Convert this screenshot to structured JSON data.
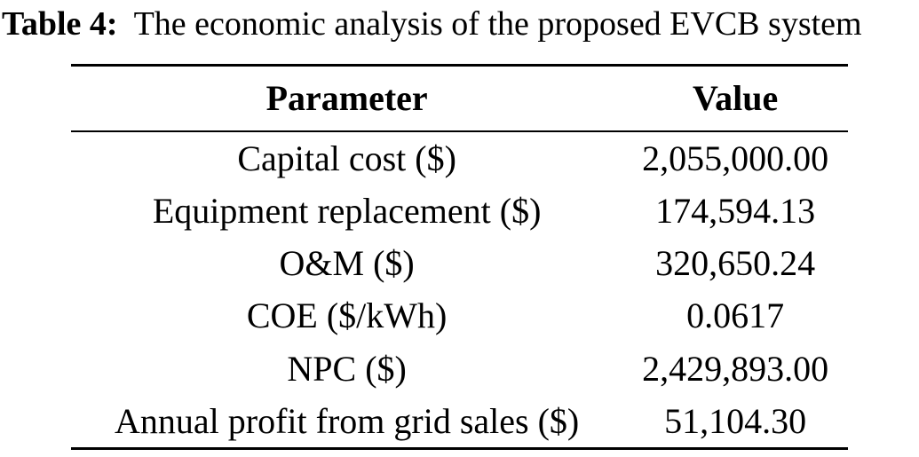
{
  "caption": {
    "label": "Table 4:",
    "text": "The economic analysis of the proposed EVCB system"
  },
  "table": {
    "columns": [
      "Parameter",
      "Value"
    ],
    "rows": [
      {
        "parameter": "Capital cost ($)",
        "value": "2,055,000.00"
      },
      {
        "parameter": "Equipment replacement ($)",
        "value": "174,594.13"
      },
      {
        "parameter": "O&M ($)",
        "value": "320,650.24"
      },
      {
        "parameter": "COE ($/kWh)",
        "value": "0.0617"
      },
      {
        "parameter": "NPC ($)",
        "value": "2,429,893.00"
      },
      {
        "parameter": "Annual profit from grid sales ($)",
        "value": "51,104.30"
      }
    ]
  },
  "colors": {
    "text": "#000000",
    "background": "#ffffff",
    "rule": "#000000"
  }
}
